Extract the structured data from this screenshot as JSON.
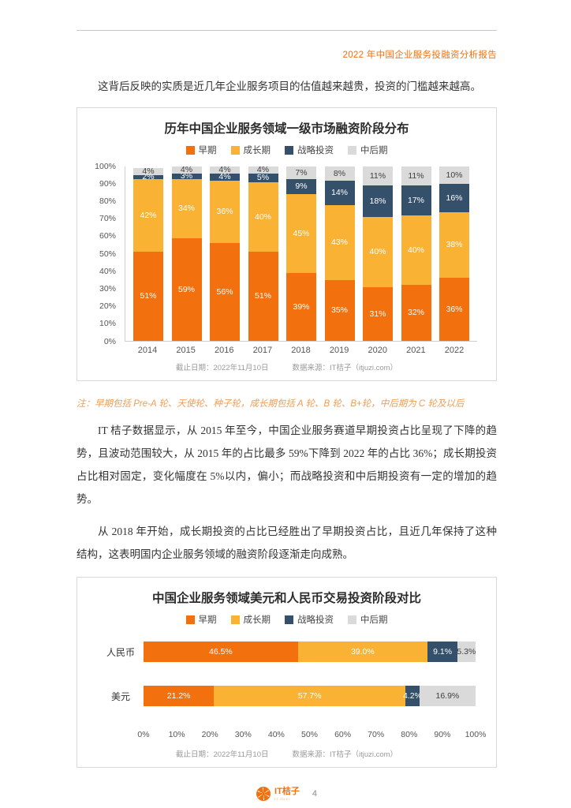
{
  "header": {
    "title": "2022 年中国企业服务投融资分析报告"
  },
  "intro": "这背后反映的实质是近几年企业服务项目的估值越来越贵，投资的门槛越来越高。",
  "note": "注：早期包括 Pre-A 轮、天使轮、种子轮，成长期包括 A 轮、B 轮、B+轮，中后期为 C 轮及以后",
  "paragraphs": [
    "IT 桔子数据显示，从 2015 年至今，中国企业服务赛道早期投资占比呈现了下降的趋势，且波动范围较大，从 2015 年的占比最多 59%下降到 2022 年的占比 36%；成长期投资占比相对固定，变化幅度在 5%以内，偏小；而战略投资和中后期投资有一定的增加的趋势。",
    "从 2018 年开始，成长期投资的占比已经胜出了早期投资占比，且近几年保持了这种结构，这表明国内企业服务领域的融资阶段逐渐走向成熟。"
  ],
  "colors": {
    "early": "#F3700E",
    "growth": "#F9B234",
    "strategic": "#34506B",
    "late": "#DADADA",
    "accent_orange": "#F3700E"
  },
  "chart_data": [
    {
      "type": "bar",
      "stacked": true,
      "orientation": "vertical",
      "title": "历年中国企业服务领域一级市场融资阶段分布",
      "categories": [
        "2014",
        "2015",
        "2016",
        "2017",
        "2018",
        "2019",
        "2020",
        "2021",
        "2022"
      ],
      "series": [
        {
          "name": "早期",
          "color": "#F3700E",
          "label_color": "#FFFFFF",
          "values": [
            51,
            59,
            56,
            51,
            39,
            35,
            31,
            32,
            36
          ]
        },
        {
          "name": "成长期",
          "color": "#F9B234",
          "label_color": "#FFFFFF",
          "values": [
            42,
            34,
            36,
            40,
            45,
            43,
            40,
            40,
            38
          ]
        },
        {
          "name": "战略投资",
          "color": "#34506B",
          "label_color": "#FFFFFF",
          "values": [
            2,
            3,
            4,
            5,
            9,
            14,
            18,
            17,
            16
          ]
        },
        {
          "name": "中后期",
          "color": "#DADADA",
          "label_color": "#404040",
          "values": [
            4,
            4,
            4,
            4,
            7,
            8,
            11,
            11,
            10
          ]
        }
      ],
      "value_suffix": "%",
      "ylim": [
        0,
        100
      ],
      "yticks": [
        "0%",
        "10%",
        "20%",
        "30%",
        "40%",
        "50%",
        "60%",
        "70%",
        "80%",
        "90%",
        "100%"
      ],
      "legend_position": "top",
      "grid": false,
      "footnote": {
        "date": "截止日期：2022年11月10日",
        "source": "数据来源：IT桔子（itjuzi.com）"
      }
    },
    {
      "type": "bar",
      "stacked": true,
      "orientation": "horizontal",
      "title": "中国企业服务领域美元和人民币交易投资阶段对比",
      "categories": [
        "人民币",
        "美元"
      ],
      "series": [
        {
          "name": "早期",
          "color": "#F3700E",
          "label_color": "#FFFFFF",
          "values": [
            46.5,
            21.2
          ]
        },
        {
          "name": "成长期",
          "color": "#F9B234",
          "label_color": "#FFFFFF",
          "values": [
            39.0,
            57.7
          ]
        },
        {
          "name": "战略投资",
          "color": "#34506B",
          "label_color": "#FFFFFF",
          "values": [
            9.1,
            4.2
          ]
        },
        {
          "name": "中后期",
          "color": "#DADADA",
          "label_color": "#404040",
          "values": [
            5.3,
            16.9
          ]
        }
      ],
      "value_labels": [
        [
          "46.5%",
          "39.0%",
          "9.1%",
          "5.3%"
        ],
        [
          "21.2%",
          "57.7%",
          "4.2%",
          "16.9%"
        ]
      ],
      "xlim": [
        0,
        100
      ],
      "xticks": [
        "0%",
        "10%",
        "20%",
        "30%",
        "40%",
        "50%",
        "60%",
        "70%",
        "80%",
        "90%",
        "100%"
      ],
      "legend_position": "top",
      "grid": false,
      "footnote": {
        "date": "截止日期：2022年11月10日",
        "source": "数据来源：IT桔子（itjuzi.com）"
      }
    }
  ],
  "footer": {
    "logo_text": "IT桔子",
    "logo_subtext": "ITJUZI",
    "page_number": "4"
  }
}
